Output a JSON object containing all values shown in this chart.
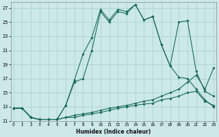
{
  "xlabel": "Humidex (Indice chaleur)",
  "bg_color": "#cce8e8",
  "grid_color": "#aad4d4",
  "line_color": "#1a6b5a",
  "xlim": [
    0,
    23
  ],
  "ylim": [
    11,
    27.8
  ],
  "xticks": [
    0,
    1,
    2,
    3,
    4,
    5,
    6,
    7,
    8,
    9,
    10,
    11,
    12,
    13,
    14,
    15,
    16,
    17,
    18,
    19,
    20,
    21,
    22,
    23
  ],
  "yticks": [
    11,
    13,
    15,
    17,
    19,
    21,
    23,
    25,
    27
  ],
  "series": [
    {
      "x": [
        0,
        1,
        2,
        3,
        4,
        5,
        6,
        7,
        8,
        9,
        10,
        11,
        12,
        13,
        14,
        15,
        16,
        17,
        18,
        19,
        20,
        21,
        22,
        23
      ],
      "y": [
        12.8,
        12.8,
        11.5,
        11.2,
        11.2,
        11.2,
        13.2,
        16.8,
        20.5,
        22.8,
        26.8,
        25.3,
        26.8,
        26.5,
        27.5,
        25.3,
        25.8,
        21.8,
        18.8,
        25.0,
        25.2,
        18.0,
        15.2,
        14.5
      ]
    },
    {
      "x": [
        0,
        1,
        2,
        3,
        4,
        5,
        6,
        7,
        8,
        9,
        10,
        11,
        12,
        13,
        14,
        15,
        16,
        17,
        18,
        19,
        20,
        21,
        22,
        23
      ],
      "y": [
        12.8,
        12.8,
        11.5,
        11.2,
        11.2,
        11.2,
        13.2,
        16.5,
        17.0,
        21.0,
        26.5,
        25.0,
        26.5,
        26.2,
        27.5,
        25.3,
        25.8,
        21.8,
        18.8,
        17.2,
        17.0,
        15.5,
        14.0,
        13.0
      ]
    },
    {
      "x": [
        0,
        1,
        2,
        3,
        4,
        5,
        6,
        7,
        8,
        9,
        10,
        11,
        12,
        13,
        14,
        15,
        16,
        17,
        18,
        19,
        20,
        21,
        22,
        23
      ],
      "y": [
        12.8,
        12.8,
        11.5,
        11.2,
        11.2,
        11.2,
        11.5,
        11.8,
        12.0,
        12.2,
        12.5,
        12.8,
        13.0,
        13.2,
        13.5,
        13.8,
        14.0,
        14.5,
        15.0,
        15.5,
        16.5,
        17.5,
        15.5,
        18.5
      ]
    },
    {
      "x": [
        0,
        1,
        2,
        3,
        4,
        5,
        6,
        7,
        8,
        9,
        10,
        11,
        12,
        13,
        14,
        15,
        16,
        17,
        18,
        19,
        20,
        21,
        22,
        23
      ],
      "y": [
        12.8,
        12.8,
        11.5,
        11.2,
        11.2,
        11.2,
        11.5,
        11.5,
        11.8,
        12.0,
        12.2,
        12.5,
        12.8,
        13.0,
        13.2,
        13.4,
        13.5,
        14.0,
        14.2,
        14.5,
        15.0,
        15.2,
        13.8,
        13.2
      ]
    }
  ]
}
